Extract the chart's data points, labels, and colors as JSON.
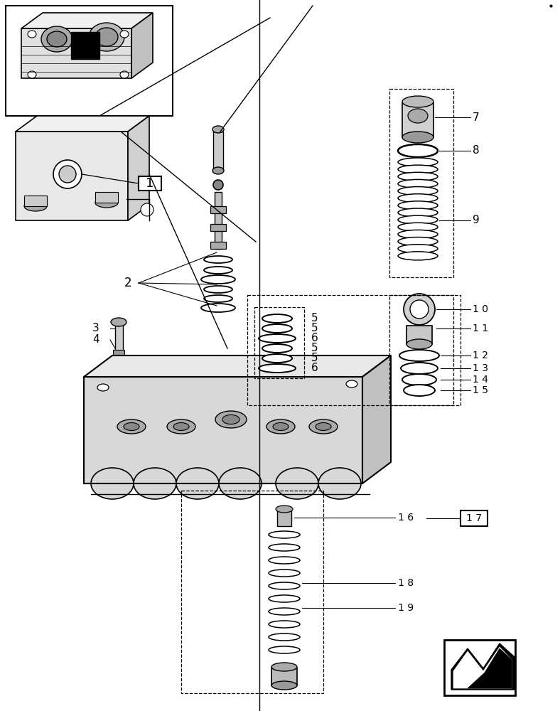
{
  "bg_color": "#ffffff",
  "line_color": "#000000",
  "fig_width": 7.88,
  "fig_height": 10.0,
  "dpi": 100
}
